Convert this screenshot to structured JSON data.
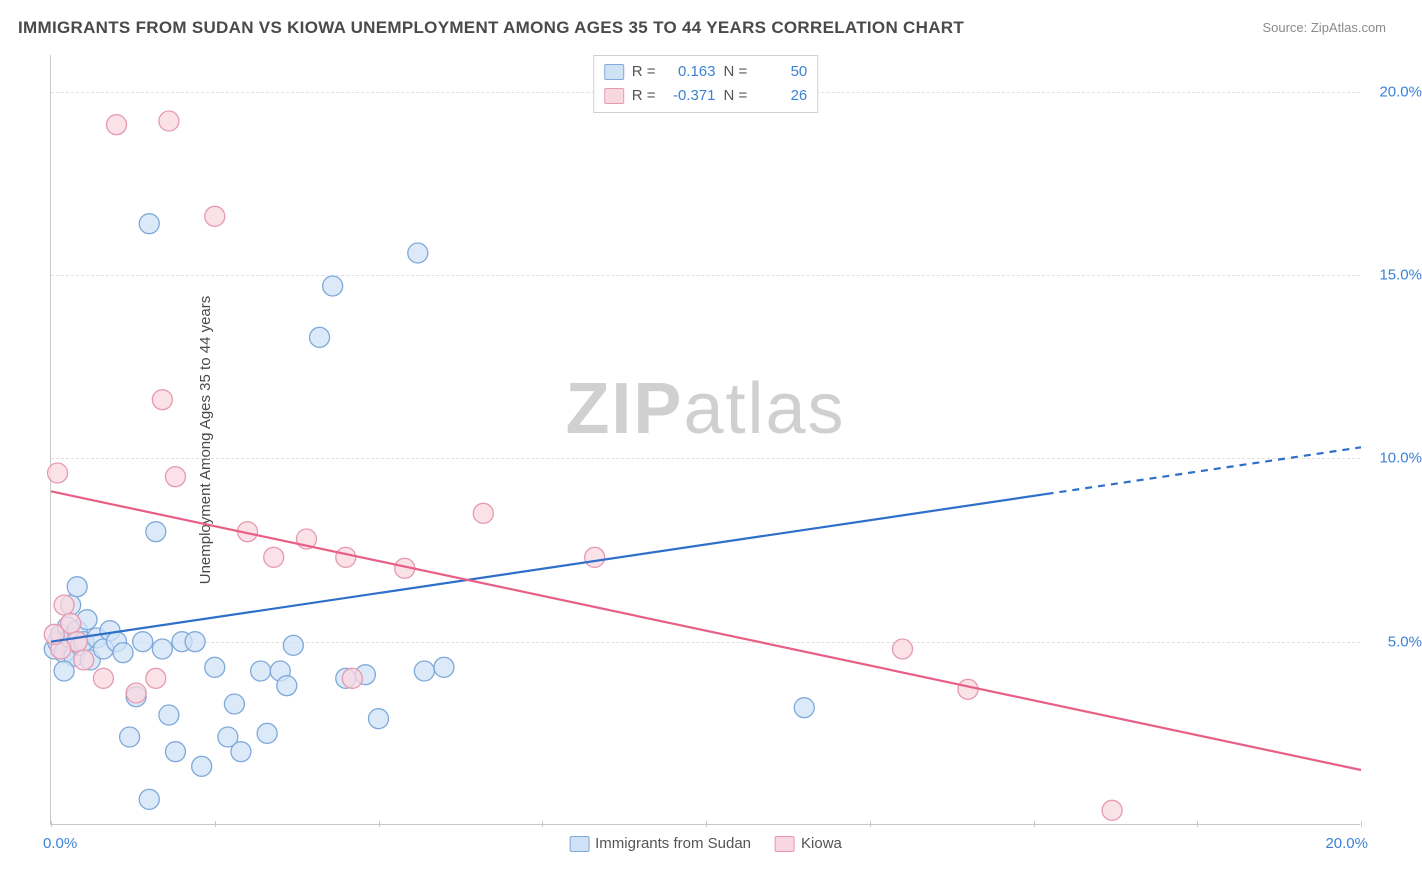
{
  "title": "IMMIGRANTS FROM SUDAN VS KIOWA UNEMPLOYMENT AMONG AGES 35 TO 44 YEARS CORRELATION CHART",
  "source": "Source: ZipAtlas.com",
  "watermark_zip": "ZIP",
  "watermark_atlas": "atlas",
  "ylabel": "Unemployment Among Ages 35 to 44 years",
  "chart": {
    "type": "scatter",
    "xlim": [
      0,
      20
    ],
    "ylim": [
      0,
      21
    ],
    "xtick_positions": [
      0,
      2.5,
      5,
      7.5,
      10,
      12.5,
      15,
      17.5,
      20
    ],
    "xtick_labels_shown": {
      "0": "0.0%",
      "20": "20.0%"
    },
    "ytick_positions": [
      5,
      10,
      15,
      20
    ],
    "ytick_labels": {
      "5": "5.0%",
      "10": "10.0%",
      "15": "15.0%",
      "20": "20.0%"
    },
    "grid_color": "#e0e0e0",
    "axis_color": "#c8c8c8",
    "background_color": "#ffffff",
    "title_fontsize": 17,
    "label_fontsize": 15,
    "tick_fontsize": 15,
    "tick_label_color": "#3b82d6",
    "series": [
      {
        "name": "Immigrants from Sudan",
        "marker_fill": "#cfe1f5",
        "marker_stroke": "#7ea9da",
        "marker_opacity": 0.75,
        "marker_radius": 10,
        "line_color": "#2e6fc9",
        "line_width": 2.2,
        "R": "0.163",
        "N": "50",
        "trend": {
          "x1": 0,
          "y1": 5.0,
          "x2": 20,
          "y2": 10.3,
          "dash_from_x": 15.2
        },
        "points": [
          {
            "x": 0.05,
            "y": 4.8
          },
          {
            "x": 0.1,
            "y": 5.0
          },
          {
            "x": 0.15,
            "y": 5.2
          },
          {
            "x": 0.2,
            "y": 4.7
          },
          {
            "x": 0.25,
            "y": 5.4
          },
          {
            "x": 0.3,
            "y": 5.1
          },
          {
            "x": 0.35,
            "y": 4.6
          },
          {
            "x": 0.4,
            "y": 5.3
          },
          {
            "x": 0.45,
            "y": 4.9
          },
          {
            "x": 0.5,
            "y": 5.0
          },
          {
            "x": 0.55,
            "y": 5.6
          },
          {
            "x": 0.6,
            "y": 4.5
          },
          {
            "x": 0.7,
            "y": 5.1
          },
          {
            "x": 0.8,
            "y": 4.8
          },
          {
            "x": 0.9,
            "y": 5.3
          },
          {
            "x": 1.0,
            "y": 5.0
          },
          {
            "x": 1.1,
            "y": 4.7
          },
          {
            "x": 1.2,
            "y": 2.4
          },
          {
            "x": 1.3,
            "y": 3.5
          },
          {
            "x": 1.4,
            "y": 5.0
          },
          {
            "x": 1.5,
            "y": 16.4
          },
          {
            "x": 1.6,
            "y": 8.0
          },
          {
            "x": 1.7,
            "y": 4.8
          },
          {
            "x": 1.8,
            "y": 3.0
          },
          {
            "x": 1.9,
            "y": 2.0
          },
          {
            "x": 2.0,
            "y": 5.0
          },
          {
            "x": 2.2,
            "y": 5.0
          },
          {
            "x": 2.3,
            "y": 1.6
          },
          {
            "x": 2.5,
            "y": 4.3
          },
          {
            "x": 2.7,
            "y": 2.4
          },
          {
            "x": 2.8,
            "y": 3.3
          },
          {
            "x": 2.9,
            "y": 2.0
          },
          {
            "x": 1.5,
            "y": 0.7
          },
          {
            "x": 3.2,
            "y": 4.2
          },
          {
            "x": 3.3,
            "y": 2.5
          },
          {
            "x": 3.5,
            "y": 4.2
          },
          {
            "x": 3.6,
            "y": 3.8
          },
          {
            "x": 3.7,
            "y": 4.9
          },
          {
            "x": 4.1,
            "y": 13.3
          },
          {
            "x": 4.3,
            "y": 14.7
          },
          {
            "x": 4.5,
            "y": 4.0
          },
          {
            "x": 4.8,
            "y": 4.1
          },
          {
            "x": 5.0,
            "y": 2.9
          },
          {
            "x": 5.6,
            "y": 15.6
          },
          {
            "x": 5.7,
            "y": 4.2
          },
          {
            "x": 6.0,
            "y": 4.3
          },
          {
            "x": 11.5,
            "y": 3.2
          },
          {
            "x": 0.3,
            "y": 6.0
          },
          {
            "x": 0.4,
            "y": 6.5
          },
          {
            "x": 0.2,
            "y": 4.2
          }
        ]
      },
      {
        "name": "Kiowa",
        "marker_fill": "#f9d7e0",
        "marker_stroke": "#e59ab0",
        "marker_opacity": 0.75,
        "marker_radius": 10,
        "line_color": "#e85f86",
        "line_width": 2.2,
        "R": "-0.371",
        "N": "26",
        "trend": {
          "x1": 0,
          "y1": 9.1,
          "x2": 20,
          "y2": 1.5,
          "dash_from_x": null
        },
        "points": [
          {
            "x": 0.1,
            "y": 9.6
          },
          {
            "x": 0.2,
            "y": 6.0
          },
          {
            "x": 0.3,
            "y": 5.5
          },
          {
            "x": 0.4,
            "y": 5.0
          },
          {
            "x": 0.5,
            "y": 4.5
          },
          {
            "x": 0.8,
            "y": 4.0
          },
          {
            "x": 1.0,
            "y": 19.1
          },
          {
            "x": 1.3,
            "y": 3.6
          },
          {
            "x": 1.6,
            "y": 4.0
          },
          {
            "x": 1.7,
            "y": 11.6
          },
          {
            "x": 1.8,
            "y": 19.2
          },
          {
            "x": 1.9,
            "y": 9.5
          },
          {
            "x": 2.5,
            "y": 16.6
          },
          {
            "x": 3.0,
            "y": 8.0
          },
          {
            "x": 3.4,
            "y": 7.3
          },
          {
            "x": 3.9,
            "y": 7.8
          },
          {
            "x": 4.5,
            "y": 7.3
          },
          {
            "x": 4.6,
            "y": 4.0
          },
          {
            "x": 5.4,
            "y": 7.0
          },
          {
            "x": 6.6,
            "y": 8.5
          },
          {
            "x": 8.3,
            "y": 7.3
          },
          {
            "x": 13.0,
            "y": 4.8
          },
          {
            "x": 14.0,
            "y": 3.7
          },
          {
            "x": 16.2,
            "y": 0.4
          },
          {
            "x": 0.15,
            "y": 4.8
          },
          {
            "x": 0.05,
            "y": 5.2
          }
        ]
      }
    ],
    "legend_bottom": [
      {
        "label": "Immigrants from Sudan",
        "fill": "#cfe1f5",
        "stroke": "#7ea9da"
      },
      {
        "label": "Kiowa",
        "fill": "#f9d7e0",
        "stroke": "#e59ab0"
      }
    ],
    "legend_top_labels": {
      "R": "R =",
      "N": "N ="
    }
  }
}
